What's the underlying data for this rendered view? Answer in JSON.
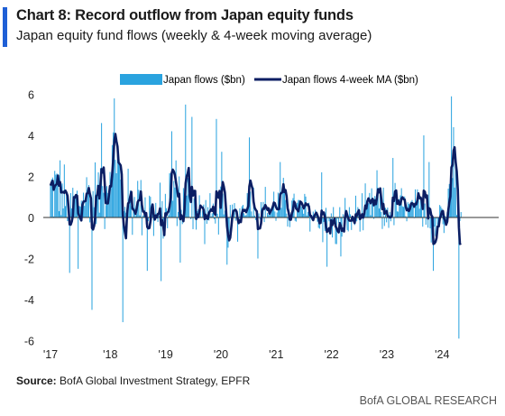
{
  "header": {
    "title": "Chart 8: Record outflow from Japan equity funds",
    "subtitle": "Japan equity fund flows (weekly & 4-week moving average)"
  },
  "footer": {
    "source_label": "Source:",
    "source_text": " BofA Global Investment Strategy, EPFR",
    "brand": "BofA GLOBAL RESEARCH"
  },
  "colors": {
    "accent": "#1f5fd6",
    "bars": "#2aa3df",
    "ma_line": "#0b1e63",
    "axis": "#333333"
  },
  "chart_data": {
    "type": "bar",
    "title": "Chart 8: Record outflow from Japan equity funds",
    "subtitle": "Japan equity fund flows (weekly & 4-week moving average)",
    "xlabel": "",
    "ylabel": "",
    "ylim": [
      -6,
      6
    ],
    "yticks": [
      6,
      4,
      2,
      0,
      -2,
      -4,
      -6
    ],
    "xticks": [
      "'17",
      "'18",
      "'19",
      "'20",
      "'21",
      "'22",
      "'23",
      "'24"
    ],
    "xrange": [
      2017.0,
      2024.55
    ],
    "legend_position": "top",
    "grid": false,
    "series": [
      {
        "name": "Japan flows ($bn)",
        "type": "bar"
      },
      {
        "name": "Japan flows 4-week MA ($bn)",
        "type": "line"
      }
    ],
    "highlights": [
      {
        "x": 2017.35,
        "y": -2.7
      },
      {
        "x": 2017.5,
        "y": -2.5
      },
      {
        "x": 2017.75,
        "y": -4.5
      },
      {
        "x": 2017.92,
        "y": 4.6
      },
      {
        "x": 2018.15,
        "y": 5.8
      },
      {
        "x": 2018.3,
        "y": -5.1
      },
      {
        "x": 2018.75,
        "y": -2.6
      },
      {
        "x": 2019.0,
        "y": -3.1
      },
      {
        "x": 2019.2,
        "y": 4.2
      },
      {
        "x": 2019.35,
        "y": -2.2
      },
      {
        "x": 2019.45,
        "y": 5.5
      },
      {
        "x": 2019.55,
        "y": 4.9
      },
      {
        "x": 2020.0,
        "y": 4.8
      },
      {
        "x": 2020.1,
        "y": 3.2
      },
      {
        "x": 2020.2,
        "y": -2.3
      },
      {
        "x": 2020.6,
        "y": 3.9
      },
      {
        "x": 2020.75,
        "y": -2.0
      },
      {
        "x": 2021.15,
        "y": 2.7
      },
      {
        "x": 2021.9,
        "y": 2.2
      },
      {
        "x": 2022.0,
        "y": -2.4
      },
      {
        "x": 2022.25,
        "y": -1.9
      },
      {
        "x": 2022.9,
        "y": 2.3
      },
      {
        "x": 2023.2,
        "y": 2.9
      },
      {
        "x": 2023.75,
        "y": 4.0
      },
      {
        "x": 2023.85,
        "y": 2.7
      },
      {
        "x": 2023.92,
        "y": -2.6
      },
      {
        "x": 2024.25,
        "y": 5.9
      },
      {
        "x": 2024.28,
        "y": 4.4
      },
      {
        "x": 2024.32,
        "y": 3.0
      },
      {
        "x": 2024.38,
        "y": -5.9
      }
    ]
  }
}
